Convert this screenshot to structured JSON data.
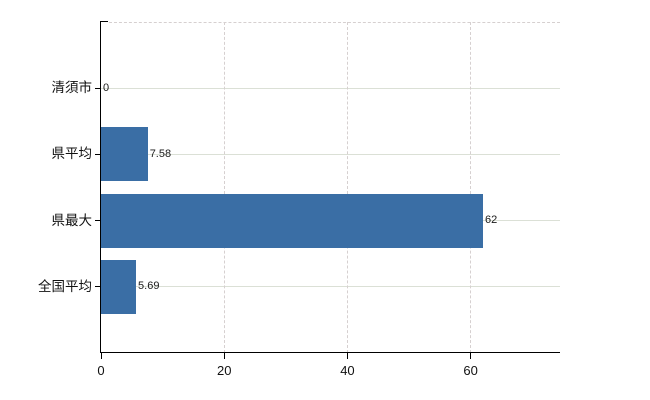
{
  "chart_data": {
    "type": "bar",
    "orientation": "horizontal",
    "title": "",
    "xlabel": "",
    "ylabel": "",
    "categories": [
      "清須市",
      "県平均",
      "県最大",
      "全国平均"
    ],
    "values": [
      0,
      7.58,
      62,
      5.69
    ],
    "value_labels": [
      "0",
      "7.58",
      "62",
      "5.69"
    ],
    "x_ticks": [
      0,
      20,
      40,
      60
    ],
    "x_tick_labels": [
      "0",
      "20",
      "40",
      "60"
    ],
    "xlim": [
      0,
      74.5
    ],
    "grid": "on",
    "legend": "none",
    "colors": {
      "bar": "#3a6ea5",
      "axis": "#000000",
      "hgrid": "#dbe0d6",
      "vgrid_dashed": "#d6d0d0",
      "background": "#ffffff",
      "text": "#111111"
    }
  }
}
